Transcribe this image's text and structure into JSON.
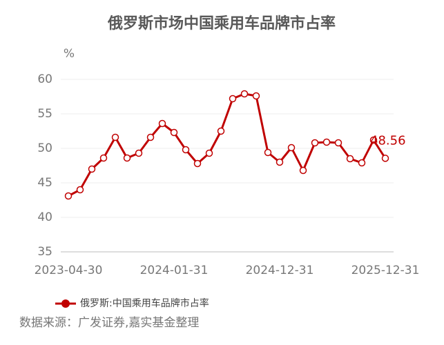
{
  "chart_data": {
    "type": "line",
    "title": "俄罗斯市场中国乘用车品牌市占率",
    "y_unit": "%",
    "source": "数据来源：广发证券,嘉实基金整理",
    "categories": [
      "2023-04-30",
      null,
      null,
      null,
      null,
      null,
      null,
      null,
      null,
      "2024-01-31",
      null,
      null,
      null,
      null,
      null,
      null,
      null,
      null,
      "2024-12-31",
      null,
      null,
      null,
      null,
      null,
      null,
      null,
      null,
      "2025-12-31"
    ],
    "series": [
      {
        "name": "俄罗斯:中国乘用车品牌市占率",
        "color": "#c00000",
        "values": [
          43.1,
          44.0,
          47.0,
          48.6,
          51.6,
          48.6,
          49.3,
          51.6,
          53.6,
          52.3,
          49.8,
          47.8,
          49.3,
          52.5,
          57.2,
          57.9,
          57.6,
          49.4,
          48.0,
          50.1,
          46.8,
          50.8,
          50.9,
          50.8,
          48.5,
          47.9,
          51.2,
          48.56
        ]
      }
    ],
    "labeled_points": [
      27
    ],
    "ylim": [
      35,
      60
    ],
    "yticks": [
      35,
      40,
      45,
      50,
      55,
      60
    ],
    "grid": true
  }
}
